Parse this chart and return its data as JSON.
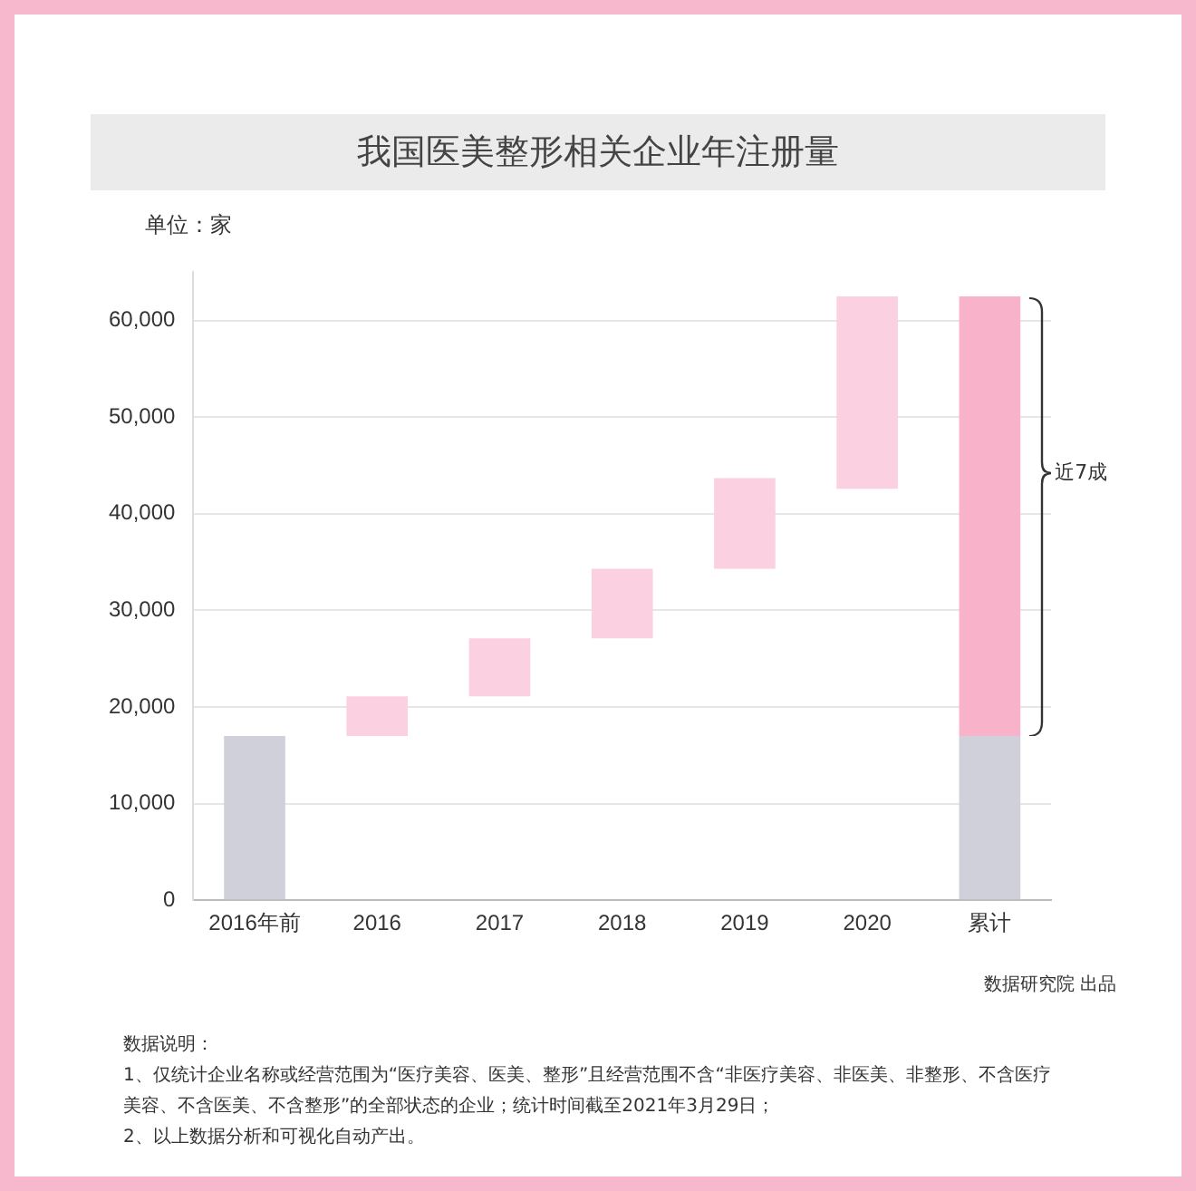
{
  "chart_data": {
    "type": "bar",
    "title": "我国医美整形相关企业年注册量",
    "ylabel": "单位：家",
    "categories": [
      "2016年前",
      "2016",
      "2017",
      "2018",
      "2019",
      "2020",
      "累计"
    ],
    "series": [
      {
        "color": "#d0d0da",
        "values": [
          17000,
          null,
          null,
          null,
          null,
          null,
          17000
        ],
        "base": [
          0,
          null,
          null,
          null,
          null,
          null,
          0
        ]
      },
      {
        "color": "#fbd0e0",
        "colors": [
          null,
          "#fbd0e0",
          "#fbd0e0",
          "#fbd0e0",
          "#fbd0e0",
          "#fbd0e0",
          "#f8b3cb"
        ],
        "values": [
          null,
          4100,
          6000,
          7200,
          9400,
          19900,
          45500
        ],
        "base": [
          null,
          17000,
          21100,
          27100,
          34300,
          42600,
          17000
        ]
      }
    ],
    "ylim": [
      0,
      65000
    ],
    "yticks": [
      0,
      {
        "value": 10000,
        "label": "10,000"
      },
      {
        "value": 20000,
        "label": "20,000"
      },
      {
        "value": 30000,
        "label": "30,000"
      },
      {
        "value": 40000,
        "label": "40,000"
      },
      {
        "value": 50000,
        "label": "50,000"
      },
      {
        "value": 60000,
        "label": "60,000"
      }
    ],
    "grid": "y",
    "legend": false,
    "annotations": [
      "近7成",
      "数据研究院 出品",
      "数据说明：",
      "1、仅统计企业名称或经营范围为“医疗美容、医美、整形”且经营范围不含“非医疗美容、非医美、非整形、不含医疗美容、不含医美、不含整形”的全部状态的企业；统计时间截至2021年3月29日；",
      "2、以上数据分析和可视化自动产出。"
    ]
  }
}
